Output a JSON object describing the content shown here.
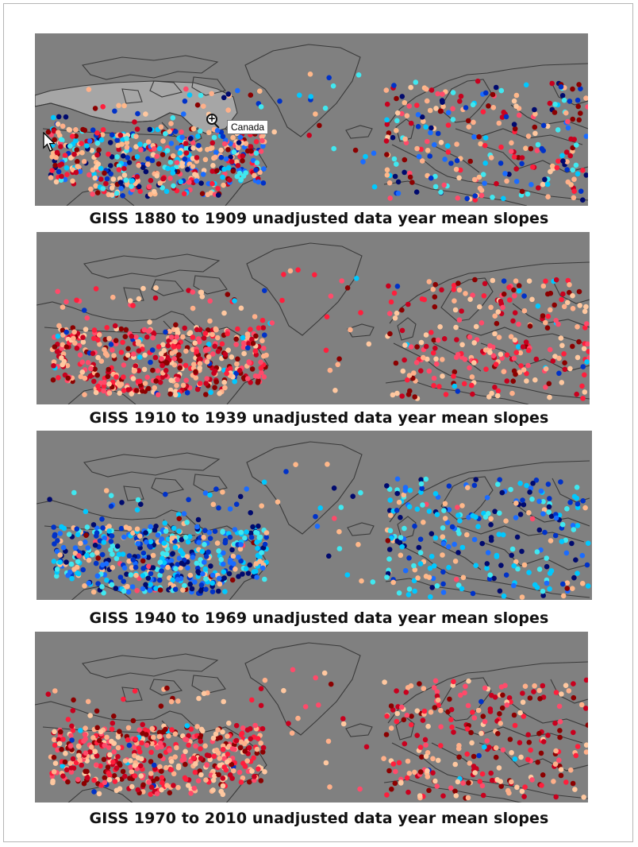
{
  "panels": [
    {
      "caption": "GISS 1880 to 1909 unadjusted data year mean slopes",
      "palette": "mixed-blue-red",
      "scheme": "mixed"
    },
    {
      "caption": "GISS 1910 to 1939 unadjusted data year mean slopes",
      "palette": "warm-red",
      "scheme": "warm"
    },
    {
      "caption": "GISS 1940 to 1969 unadjusted data year mean slopes",
      "palette": "cool-blue",
      "scheme": "cool"
    },
    {
      "caption": "GISS 1970 to 2010 unadjusted data year mean slopes",
      "palette": "warm-red",
      "scheme": "warm"
    }
  ],
  "tooltip": {
    "label": "Canada"
  },
  "colors": {
    "ocean": "#808080",
    "land_outline": "#3a3a3a",
    "highlight_land": "#a6a6a6",
    "warm": [
      "#8b0000",
      "#c8001e",
      "#ff1e3c",
      "#ff4a6a",
      "#ffb08a",
      "#ffc8a0"
    ],
    "cool": [
      "#000a6e",
      "#0032c8",
      "#1a6cff",
      "#00c8ff",
      "#40e8f0",
      "#ffb88a"
    ]
  },
  "icons": {
    "cursor": "arrow-cursor-icon",
    "zoom": "magnifier-zoom-icon"
  }
}
